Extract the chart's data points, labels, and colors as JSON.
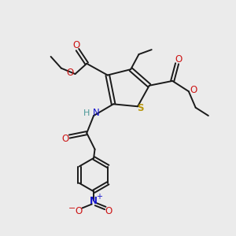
{
  "bg_color": "#ebebeb",
  "bond_color": "#1a1a1a",
  "bond_width": 1.4,
  "S_color": "#b8960c",
  "N_color": "#1414cc",
  "O_color": "#cc1414",
  "H_color": "#4a9898",
  "figsize": [
    3.0,
    3.0
  ],
  "dpi": 100,
  "xlim": [
    0,
    10
  ],
  "ylim": [
    0,
    10
  ]
}
